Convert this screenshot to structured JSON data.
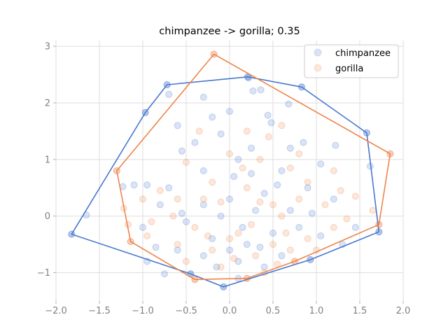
{
  "chart_data": {
    "type": "scatter",
    "title": "chimpanzee -> gorilla; 0.35",
    "xlabel": "",
    "ylabel": "",
    "xlim": [
      -2.0,
      2.0
    ],
    "ylim": [
      -1.5,
      3.1
    ],
    "xticks": [
      -2.0,
      -1.5,
      -1.0,
      -0.5,
      0.0,
      0.5,
      1.0,
      1.5,
      2.0
    ],
    "xtick_labels": [
      "−2.0",
      "−1.5",
      "−1.0",
      "−0.5",
      "0.0",
      "0.5",
      "1.0",
      "1.5",
      "2.0"
    ],
    "yticks": [
      -1,
      0,
      1,
      2,
      3
    ],
    "ytick_labels": [
      "−1",
      "0",
      "1",
      "2",
      "3"
    ],
    "grid": true,
    "legend_position": "top-right",
    "series": [
      {
        "name": "chimpanzee",
        "color": "#4878cf",
        "point_alpha": 0.2,
        "hull": [
          [
            -1.82,
            -0.32
          ],
          [
            -0.97,
            1.83
          ],
          [
            -0.72,
            2.32
          ],
          [
            0.21,
            2.46
          ],
          [
            0.83,
            2.28
          ],
          [
            1.58,
            1.47
          ],
          [
            1.72,
            -0.28
          ],
          [
            0.93,
            -0.77
          ],
          [
            -0.07,
            -1.25
          ],
          [
            -0.45,
            -1.02
          ]
        ],
        "points": [
          [
            0.21,
            2.46
          ],
          [
            0.22,
            2.44
          ],
          [
            0.27,
            2.21
          ],
          [
            -0.72,
            2.32
          ],
          [
            -0.7,
            2.15
          ],
          [
            0.83,
            2.28
          ],
          [
            -0.97,
            1.83
          ],
          [
            0.36,
            2.23
          ],
          [
            -0.3,
            2.1
          ],
          [
            0.68,
            1.98
          ],
          [
            1.58,
            1.47
          ],
          [
            -0.6,
            1.6
          ],
          [
            -0.2,
            1.75
          ],
          [
            0.0,
            1.85
          ],
          [
            0.48,
            1.65
          ],
          [
            0.44,
            1.78
          ],
          [
            1.22,
            1.25
          ],
          [
            1.72,
            -0.28
          ],
          [
            1.62,
            0.88
          ],
          [
            -0.95,
            0.55
          ],
          [
            -1.23,
            0.52
          ],
          [
            -1.1,
            0.55
          ],
          [
            -1.65,
            0.02
          ],
          [
            -1.82,
            -0.32
          ],
          [
            -0.55,
            1.15
          ],
          [
            -0.1,
            1.45
          ],
          [
            0.85,
            1.3
          ],
          [
            1.05,
            0.92
          ],
          [
            0.7,
            1.2
          ],
          [
            0.1,
            1.0
          ],
          [
            -0.3,
            0.8
          ],
          [
            0.25,
            0.75
          ],
          [
            0.6,
            0.8
          ],
          [
            -0.7,
            0.5
          ],
          [
            -0.8,
            0.2
          ],
          [
            -1.0,
            -0.2
          ],
          [
            -0.85,
            -0.55
          ],
          [
            -0.95,
            -0.8
          ],
          [
            -0.75,
            -1.02
          ],
          [
            -0.45,
            -1.02
          ],
          [
            -0.07,
            -1.25
          ],
          [
            0.1,
            -1.1
          ],
          [
            0.93,
            -0.77
          ],
          [
            1.3,
            -0.5
          ],
          [
            1.45,
            -0.2
          ],
          [
            1.2,
            0.3
          ],
          [
            0.9,
            0.5
          ],
          [
            0.4,
            0.4
          ],
          [
            0.0,
            0.3
          ],
          [
            -0.3,
            0.2
          ],
          [
            -0.5,
            -0.1
          ],
          [
            -0.2,
            -0.4
          ],
          [
            0.2,
            -0.5
          ],
          [
            0.5,
            -0.3
          ],
          [
            0.8,
            -0.2
          ],
          [
            0.7,
            0.1
          ],
          [
            0.3,
            0.1
          ],
          [
            -0.1,
            0.0
          ],
          [
            0.1,
            -0.8
          ],
          [
            0.4,
            -0.9
          ],
          [
            -0.3,
            -0.7
          ],
          [
            -0.6,
            -0.6
          ],
          [
            0.6,
            -0.7
          ],
          [
            0.0,
            -0.6
          ],
          [
            0.15,
            -0.2
          ],
          [
            0.35,
            -0.55
          ],
          [
            -0.15,
            -0.9
          ],
          [
            0.55,
            0.55
          ],
          [
            0.95,
            0.05
          ],
          [
            1.05,
            -0.35
          ],
          [
            0.25,
            1.2
          ],
          [
            -0.4,
            1.3
          ],
          [
            0.05,
            0.7
          ],
          [
            -0.55,
            0.05
          ]
        ]
      },
      {
        "name": "gorilla",
        "color": "#ee854a",
        "point_alpha": 0.2,
        "hull": [
          [
            -0.18,
            2.86
          ],
          [
            1.85,
            1.1
          ],
          [
            1.72,
            -0.15
          ],
          [
            0.75,
            -0.8
          ],
          [
            0.2,
            -1.1
          ],
          [
            -0.4,
            -1.12
          ],
          [
            -1.14,
            -0.45
          ],
          [
            -1.3,
            0.8
          ]
        ],
        "points": [
          [
            -0.18,
            2.86
          ],
          [
            1.85,
            1.1
          ],
          [
            1.65,
            0.1
          ],
          [
            1.72,
            -0.15
          ],
          [
            1.45,
            0.35
          ],
          [
            1.28,
            0.45
          ],
          [
            1.2,
            0.8
          ],
          [
            -1.3,
            0.8
          ],
          [
            -1.22,
            0.14
          ],
          [
            -1.17,
            -0.15
          ],
          [
            -1.14,
            -0.45
          ],
          [
            -0.95,
            -0.35
          ],
          [
            -0.4,
            -1.12
          ],
          [
            0.2,
            -1.1
          ],
          [
            0.75,
            -0.8
          ],
          [
            0.45,
            1.4
          ],
          [
            0.6,
            1.6
          ],
          [
            0.2,
            1.5
          ],
          [
            -0.35,
            1.5
          ],
          [
            0.8,
            1.1
          ],
          [
            -0.5,
            0.95
          ],
          [
            0.0,
            1.1
          ],
          [
            0.35,
            1.0
          ],
          [
            -0.8,
            0.45
          ],
          [
            -0.6,
            0.3
          ],
          [
            0.9,
            0.6
          ],
          [
            1.1,
            0.2
          ],
          [
            0.2,
            0.5
          ],
          [
            -0.2,
            0.6
          ],
          [
            0.5,
            0.2
          ],
          [
            -0.4,
            -0.2
          ],
          [
            0.1,
            -0.3
          ],
          [
            0.5,
            -0.5
          ],
          [
            0.9,
            -0.4
          ],
          [
            -0.2,
            -0.6
          ],
          [
            -0.6,
            -0.5
          ],
          [
            0.3,
            -0.7
          ],
          [
            0.7,
            -0.6
          ],
          [
            -0.1,
            -0.9
          ],
          [
            0.4,
            -1.0
          ],
          [
            -0.5,
            -0.8
          ],
          [
            0.0,
            -0.4
          ],
          [
            0.6,
            0.0
          ],
          [
            1.2,
            -0.2
          ],
          [
            0.8,
            0.3
          ],
          [
            -0.9,
            -0.1
          ],
          [
            -0.3,
            0.3
          ],
          [
            0.25,
            -0.15
          ],
          [
            0.65,
            -0.3
          ],
          [
            0.05,
            -0.75
          ],
          [
            0.55,
            -0.85
          ],
          [
            -0.25,
            -0.35
          ],
          [
            1.0,
            -0.6
          ],
          [
            0.35,
            0.25
          ],
          [
            -0.65,
            0.0
          ],
          [
            0.15,
            0.85
          ],
          [
            0.7,
            0.85
          ],
          [
            -0.1,
            0.25
          ],
          [
            1.35,
            -0.05
          ],
          [
            -1.0,
            0.3
          ]
        ]
      }
    ]
  }
}
